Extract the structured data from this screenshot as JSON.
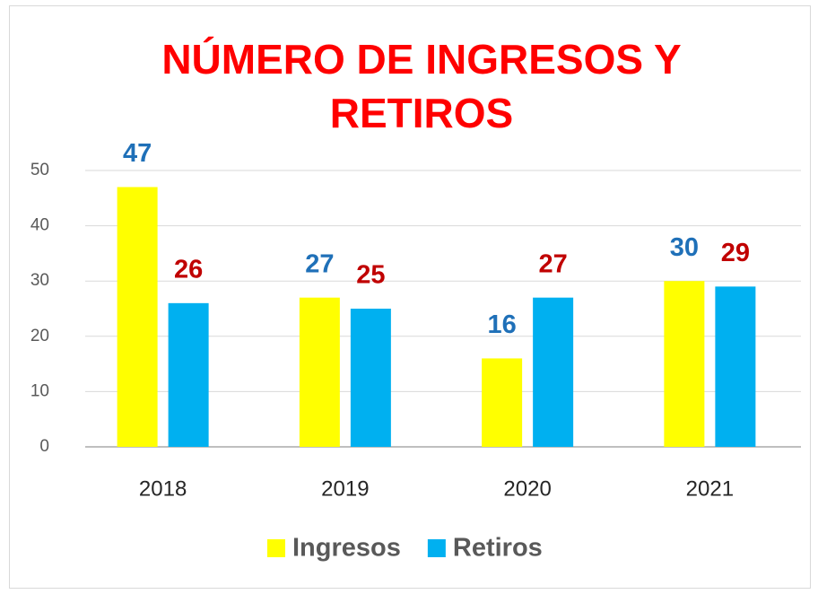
{
  "chart_data": {
    "type": "bar",
    "title": "NÚMERO DE INGRESOS Y RETIROS",
    "categories": [
      "2018",
      "2019",
      "2020",
      "2021"
    ],
    "series": [
      {
        "name": "Ingresos",
        "color": "#ffff00",
        "label_color": "#1f70b8",
        "values": [
          47,
          27,
          16,
          30
        ]
      },
      {
        "name": "Retiros",
        "color": "#00b0f0",
        "label_color": "#c00000",
        "values": [
          26,
          25,
          27,
          29
        ]
      }
    ],
    "ylim": [
      0,
      50
    ],
    "yticks": [
      0,
      10,
      20,
      30,
      40,
      50
    ],
    "grid": true,
    "legend": "bottom"
  }
}
